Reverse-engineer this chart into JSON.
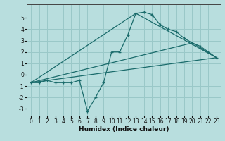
{
  "xlabel": "Humidex (Indice chaleur)",
  "bg_color": "#b8dede",
  "grid_color": "#9ac8c8",
  "line_color": "#1a6b6b",
  "xlim": [
    -0.5,
    23.5
  ],
  "ylim": [
    -3.6,
    6.2
  ],
  "xticks": [
    0,
    1,
    2,
    3,
    4,
    5,
    6,
    7,
    8,
    9,
    10,
    11,
    12,
    13,
    14,
    15,
    16,
    17,
    18,
    19,
    20,
    21,
    22,
    23
  ],
  "yticks": [
    -3,
    -2,
    -1,
    0,
    1,
    2,
    3,
    4,
    5
  ],
  "line1_x": [
    0,
    1,
    2,
    3,
    4,
    5,
    6,
    7,
    8,
    9,
    10,
    11,
    12,
    13,
    14,
    15,
    16,
    17,
    18,
    19,
    20,
    21,
    22,
    23
  ],
  "line1_y": [
    -0.7,
    -0.7,
    -0.5,
    -0.7,
    -0.7,
    -0.7,
    -0.5,
    -3.2,
    -2.0,
    -0.7,
    2.0,
    2.0,
    3.5,
    5.4,
    5.5,
    5.3,
    4.4,
    4.0,
    3.8,
    3.2,
    2.8,
    2.5,
    2.0,
    1.5
  ],
  "line2_x": [
    0,
    23
  ],
  "line2_y": [
    -0.7,
    1.5
  ],
  "line3_x": [
    0,
    13,
    23
  ],
  "line3_y": [
    -0.7,
    5.4,
    1.5
  ],
  "line4_x": [
    0,
    20,
    23
  ],
  "line4_y": [
    -0.7,
    2.8,
    1.5
  ],
  "xlabel_fontsize": 6.5,
  "tick_fontsize": 5.5,
  "linewidth": 0.9,
  "marker_size": 3.5
}
